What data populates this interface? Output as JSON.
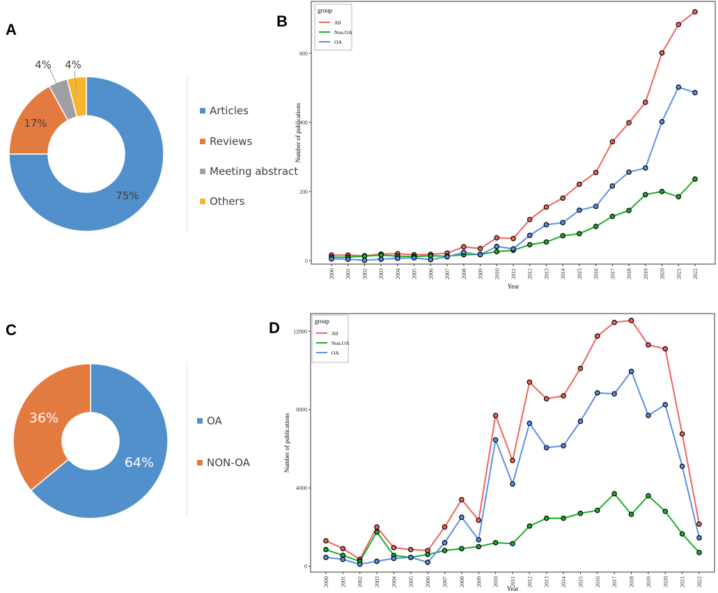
{
  "panels": {
    "A": "A",
    "B": "B",
    "C": "C",
    "D": "D"
  },
  "chart_data": [
    {
      "id": "A",
      "type": "pie",
      "donut": true,
      "categories": [
        "Articles",
        "Reviews",
        "Meeting abstract",
        "Others"
      ],
      "values": [
        75,
        17,
        4,
        4
      ],
      "labels": [
        "75%",
        "17%",
        "4%",
        "4%"
      ],
      "colors": [
        "#5190cb",
        "#e37a40",
        "#a0a0a4",
        "#f6b52d"
      ],
      "legend_position": "right"
    },
    {
      "id": "B",
      "type": "line",
      "legend_title": "group",
      "x": [
        "2000",
        "2001",
        "2002",
        "2003",
        "2004",
        "2005",
        "2006",
        "2007",
        "2008",
        "2009",
        "2010",
        "2011",
        "2012",
        "2013",
        "2014",
        "2015",
        "2016",
        "2017",
        "2018",
        "2019",
        "2020",
        "2021",
        "2022"
      ],
      "series": [
        {
          "name": "All",
          "color": "#f0635a",
          "values": [
            16,
            16,
            14,
            19,
            20,
            17,
            18,
            22,
            40,
            35,
            66,
            64,
            119,
            155,
            181,
            221,
            255,
            344,
            399,
            458,
            601,
            683,
            720
          ]
        },
        {
          "name": "Non.OA",
          "color": "#1aad2a",
          "values": [
            10,
            10,
            13,
            16,
            13,
            12,
            14,
            13,
            17,
            18,
            26,
            30,
            46,
            54,
            72,
            78,
            99,
            128,
            145,
            191,
            200,
            185,
            236
          ]
        },
        {
          "name": "OA",
          "color": "#5b8fe6",
          "values": [
            5,
            4,
            1,
            4,
            7,
            8,
            3,
            11,
            24,
            17,
            41,
            34,
            73,
            104,
            110,
            146,
            157,
            216,
            256,
            268,
            402,
            502,
            486
          ]
        }
      ],
      "xlabel": "Year",
      "ylabel": "Number of publications",
      "yticks": [
        0,
        200,
        400,
        600
      ],
      "ylim": [
        -10,
        750
      ],
      "legend_position": "top-left"
    },
    {
      "id": "C",
      "type": "pie",
      "donut": true,
      "categories": [
        "OA",
        "NON-OA"
      ],
      "values": [
        64,
        36
      ],
      "labels": [
        "64%",
        "36%"
      ],
      "colors": [
        "#5190cb",
        "#e37a40"
      ],
      "legend_position": "right"
    },
    {
      "id": "D",
      "type": "line",
      "legend_title": "group",
      "x": [
        "2000",
        "2001",
        "2002",
        "2003",
        "2004",
        "2005",
        "2006",
        "2007",
        "2008",
        "2009",
        "2010",
        "2011",
        "2012",
        "2013",
        "2014",
        "2015",
        "2016",
        "2017",
        "2018",
        "2019",
        "2020",
        "2021",
        "2022"
      ],
      "series": [
        {
          "name": "All",
          "color": "#f0635a",
          "values": [
            1300,
            900,
            350,
            2000,
            950,
            850,
            800,
            2000,
            3400,
            2350,
            7700,
            5400,
            9400,
            8550,
            8700,
            10100,
            11750,
            12450,
            12550,
            11300,
            11100,
            6750,
            2150
          ]
        },
        {
          "name": "Non.OA",
          "color": "#1aad2a",
          "values": [
            850,
            550,
            250,
            1750,
            550,
            450,
            600,
            800,
            900,
            1000,
            1200,
            1150,
            2050,
            2450,
            2450,
            2700,
            2850,
            3700,
            2650,
            3600,
            2800,
            1650,
            700
          ]
        },
        {
          "name": "OA",
          "color": "#5b8fe6",
          "values": [
            450,
            350,
            100,
            250,
            400,
            450,
            200,
            1200,
            2500,
            1350,
            6450,
            4200,
            7300,
            6050,
            6150,
            7400,
            8850,
            8800,
            9950,
            7700,
            8250,
            5100,
            1450
          ]
        }
      ],
      "xlabel": "Year",
      "ylabel": "Number of publications",
      "yticks": [
        0,
        4000,
        8000,
        12000
      ],
      "ylim": [
        -300,
        12900
      ],
      "legend_position": "top-left"
    }
  ]
}
